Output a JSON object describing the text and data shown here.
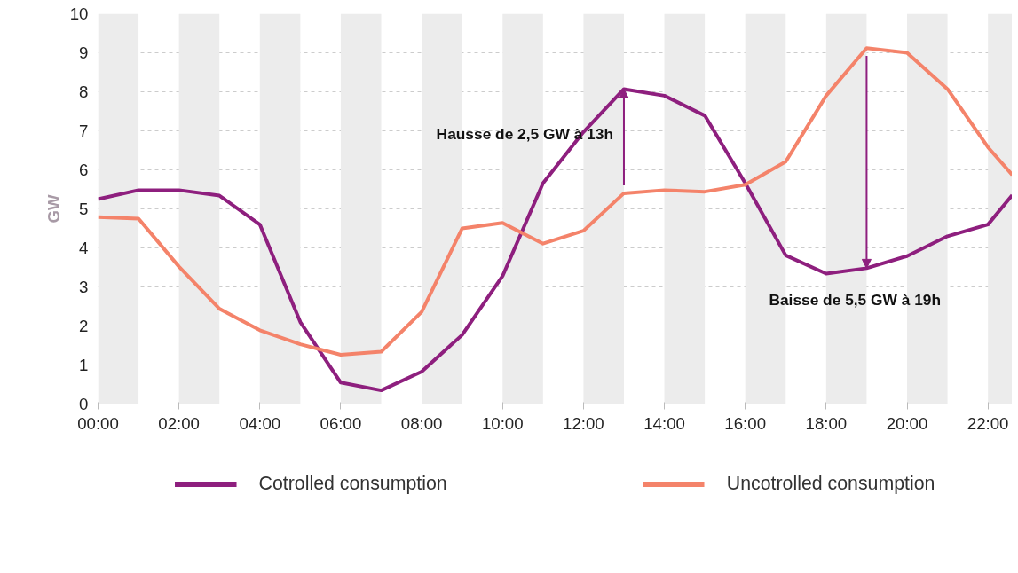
{
  "chart_data": {
    "type": "line",
    "ylabel": "GW",
    "xlim": [
      0,
      22.6
    ],
    "ylim": [
      0,
      10
    ],
    "xticks": [
      {
        "value": 0,
        "label": "00:00"
      },
      {
        "value": 2,
        "label": "02:00"
      },
      {
        "value": 4,
        "label": "04:00"
      },
      {
        "value": 6,
        "label": "06:00"
      },
      {
        "value": 8,
        "label": "08:00"
      },
      {
        "value": 10,
        "label": "10:00"
      },
      {
        "value": 12,
        "label": "12:00"
      },
      {
        "value": 14,
        "label": "14:00"
      },
      {
        "value": 16,
        "label": "16:00"
      },
      {
        "value": 18,
        "label": "18:00"
      },
      {
        "value": 20,
        "label": "20:00"
      },
      {
        "value": 22,
        "label": "22:00"
      }
    ],
    "yticks": [
      0,
      1,
      2,
      3,
      4,
      5,
      6,
      7,
      8,
      9,
      10
    ],
    "grid": "y",
    "legend": "bottom",
    "marker": "none",
    "line_style": "solid",
    "series": [
      {
        "name": "Cotrolled consumption",
        "color": "#8e1f7e",
        "x": [
          0,
          1,
          2,
          3,
          4,
          5,
          6,
          7,
          8,
          9,
          10,
          11,
          12,
          13,
          14,
          15,
          16,
          17,
          18,
          19,
          20,
          21,
          22,
          22.6
        ],
        "values": [
          5.25,
          5.48,
          5.48,
          5.34,
          4.6,
          2.1,
          0.55,
          0.35,
          0.83,
          1.77,
          3.28,
          5.66,
          6.97,
          8.07,
          7.9,
          7.39,
          5.66,
          3.81,
          3.34,
          3.48,
          3.79,
          4.3,
          4.6,
          5.35
        ]
      },
      {
        "name": "Uncotrolled consumption",
        "color": "#f4836a",
        "x": [
          0,
          1,
          2,
          3,
          4,
          5,
          6,
          7,
          8,
          9,
          10,
          11,
          12,
          13,
          14,
          15,
          16,
          17,
          18,
          19,
          20,
          21,
          22,
          22.6
        ],
        "values": [
          4.79,
          4.75,
          3.52,
          2.44,
          1.89,
          1.53,
          1.26,
          1.34,
          2.36,
          4.5,
          4.64,
          4.11,
          4.44,
          5.4,
          5.48,
          5.44,
          5.62,
          6.21,
          7.9,
          9.12,
          9.0,
          8.07,
          6.58,
          5.87
        ]
      }
    ],
    "bands": [
      {
        "axis": "x",
        "from": 0,
        "to": 1,
        "color": "#ececec"
      },
      {
        "axis": "x",
        "from": 2,
        "to": 3,
        "color": "#ececec"
      },
      {
        "axis": "x",
        "from": 4,
        "to": 5,
        "color": "#ececec"
      },
      {
        "axis": "x",
        "from": 6,
        "to": 7,
        "color": "#ececec"
      },
      {
        "axis": "x",
        "from": 8,
        "to": 9,
        "color": "#ececec"
      },
      {
        "axis": "x",
        "from": 10,
        "to": 11,
        "color": "#ececec"
      },
      {
        "axis": "x",
        "from": 12,
        "to": 13,
        "color": "#ececec"
      },
      {
        "axis": "x",
        "from": 14,
        "to": 15,
        "color": "#ececec"
      },
      {
        "axis": "x",
        "from": 16,
        "to": 17,
        "color": "#ececec"
      },
      {
        "axis": "x",
        "from": 18,
        "to": 19,
        "color": "#ececec"
      },
      {
        "axis": "x",
        "from": 20,
        "to": 21,
        "color": "#ececec"
      },
      {
        "axis": "x",
        "from": 22,
        "to": 22.6,
        "color": "#ececec"
      }
    ],
    "annotations": [
      {
        "text": "Hausse de 2,5 GW à 13h",
        "x": 13,
        "y": 6.7
      },
      {
        "text": "Baisse de 5,5 GW à 19h",
        "x": 19,
        "y": 3.7
      }
    ]
  }
}
